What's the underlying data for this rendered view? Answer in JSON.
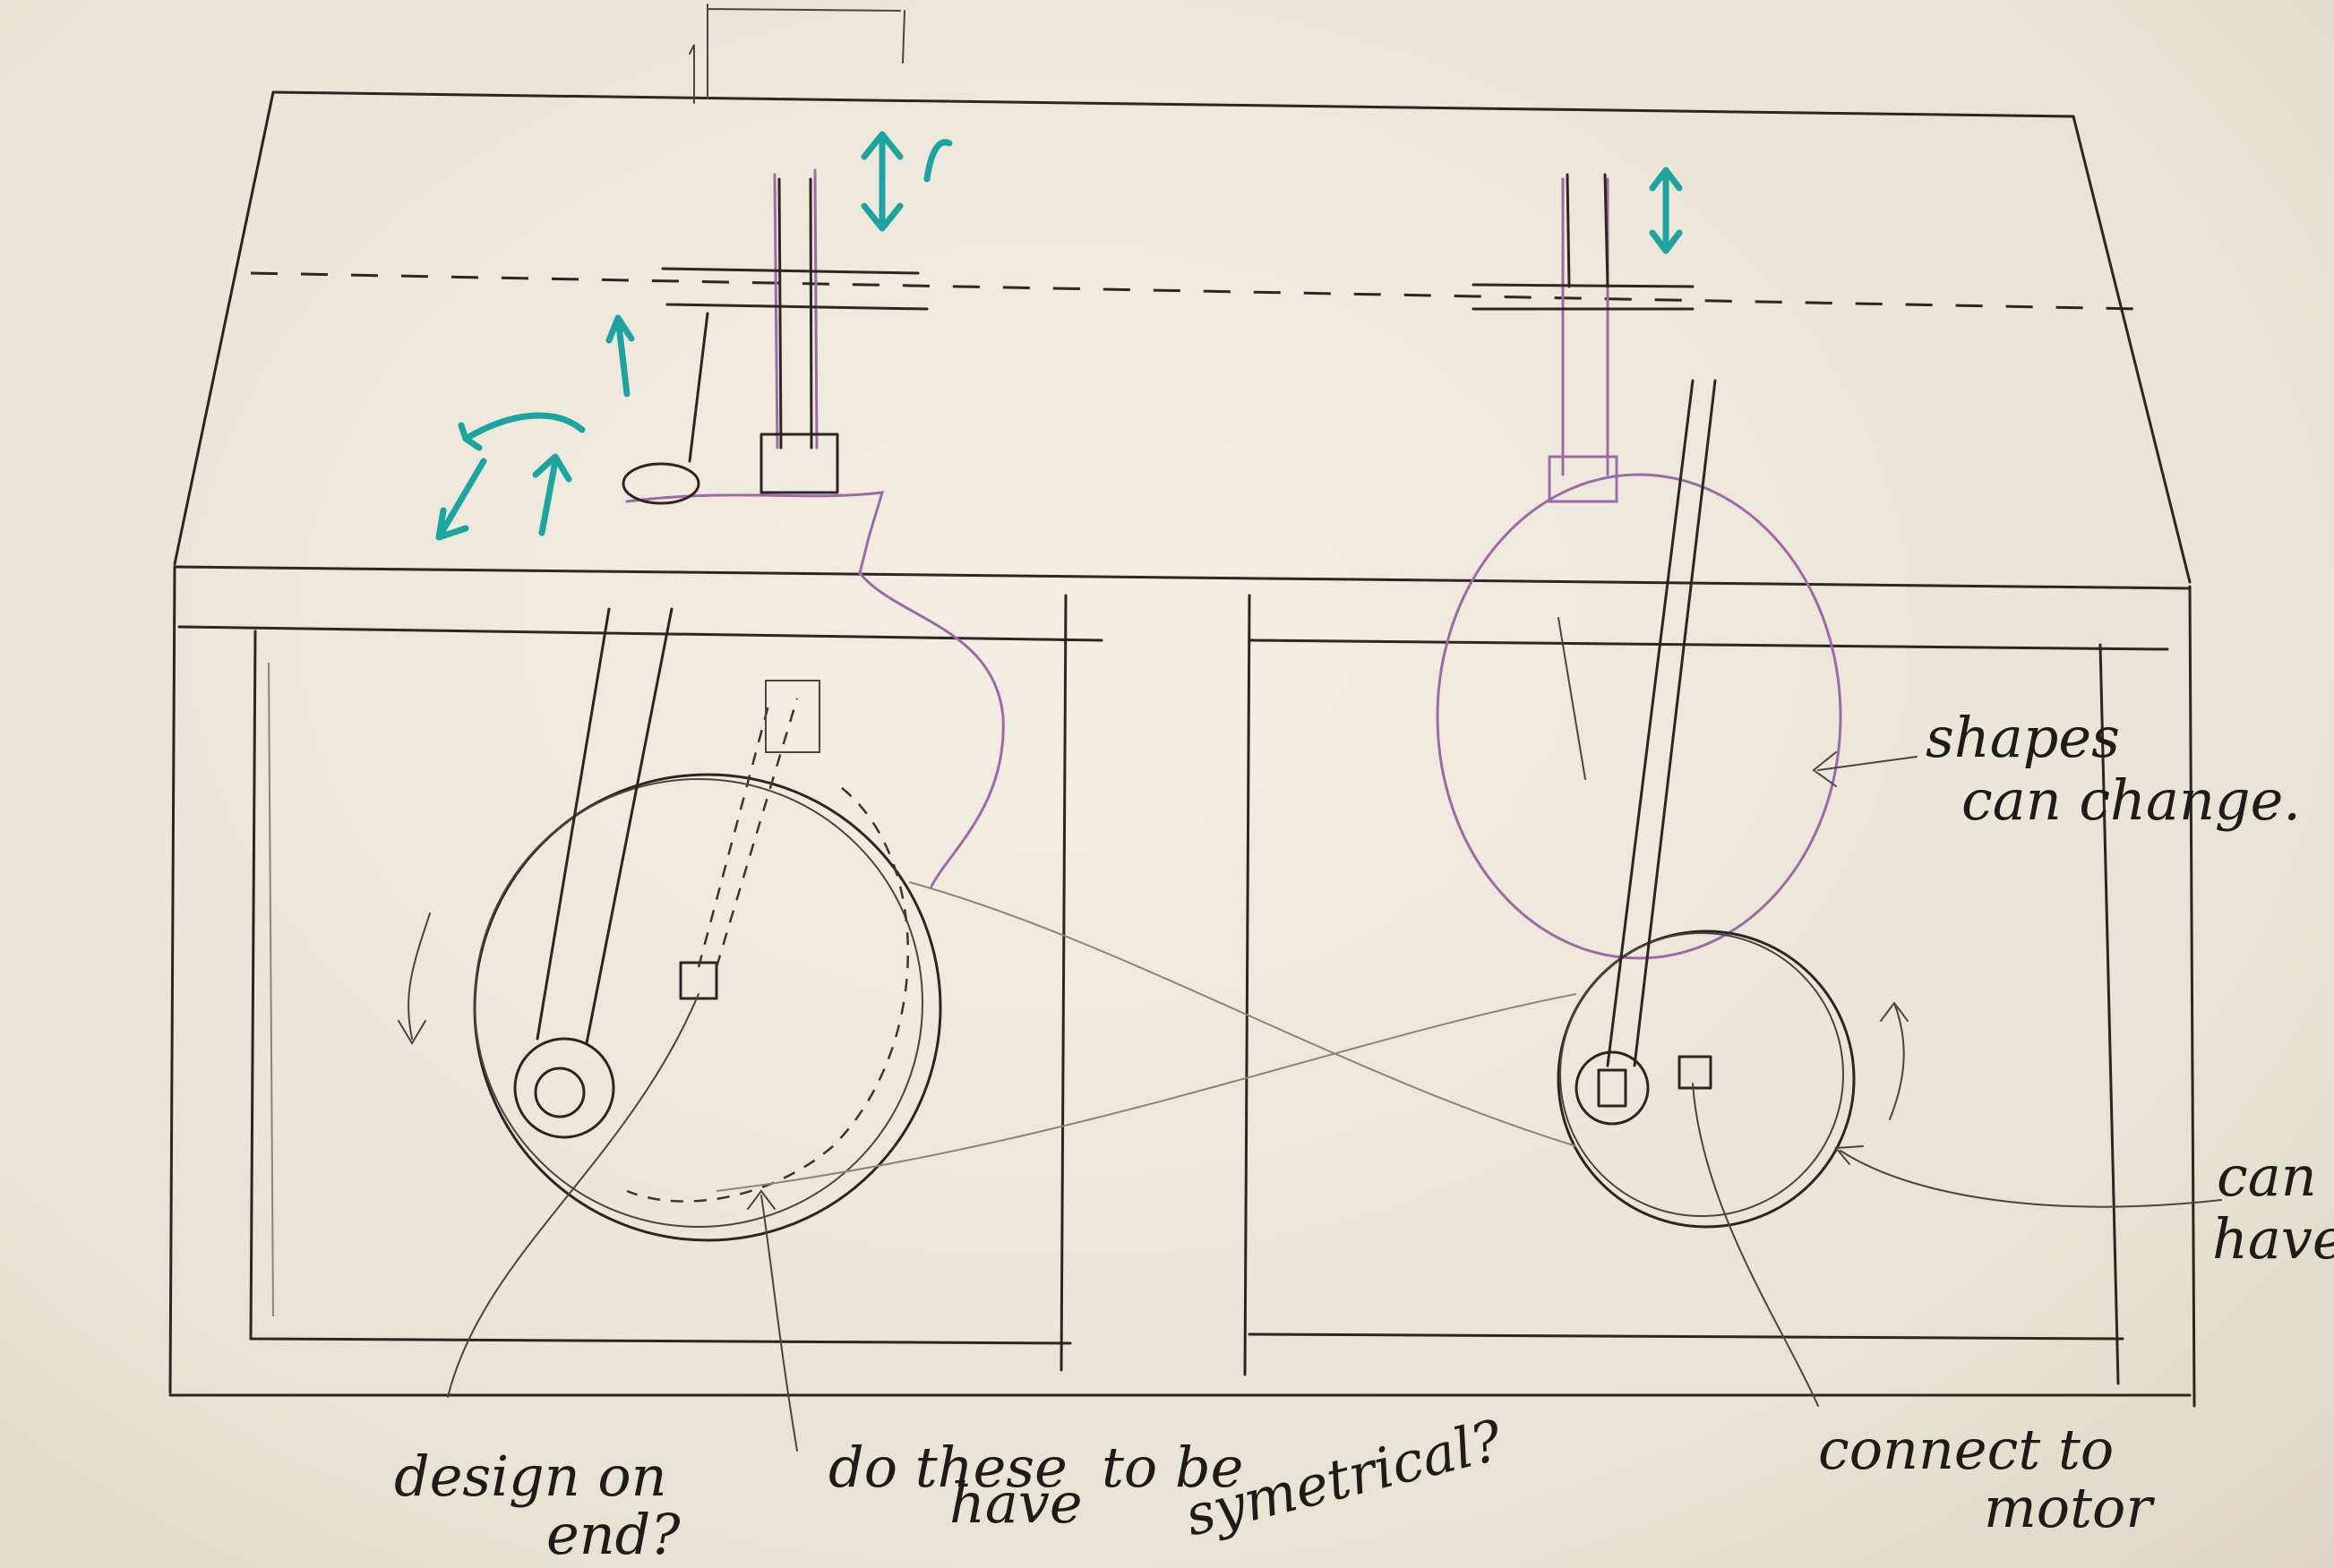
{
  "annotations": {
    "shapes_change_line1": "shapes",
    "shapes_change_line2": "can change.",
    "can_have_line1": "can",
    "can_have_line2": "have",
    "design_line1": "design on",
    "design_line2": "end?",
    "symmetrical_line1": "do these",
    "symmetrical_line2": "have",
    "symmetrical_line3": "to be",
    "symmetrical_line4": "symetrical?",
    "connect_line1": "connect to",
    "connect_line2": "motor"
  },
  "colors": {
    "pencil": "#2b2622",
    "purple_pencil": "#9c6aa6",
    "teal_marker": "#1ea3a0",
    "paper": "#efeadc"
  }
}
